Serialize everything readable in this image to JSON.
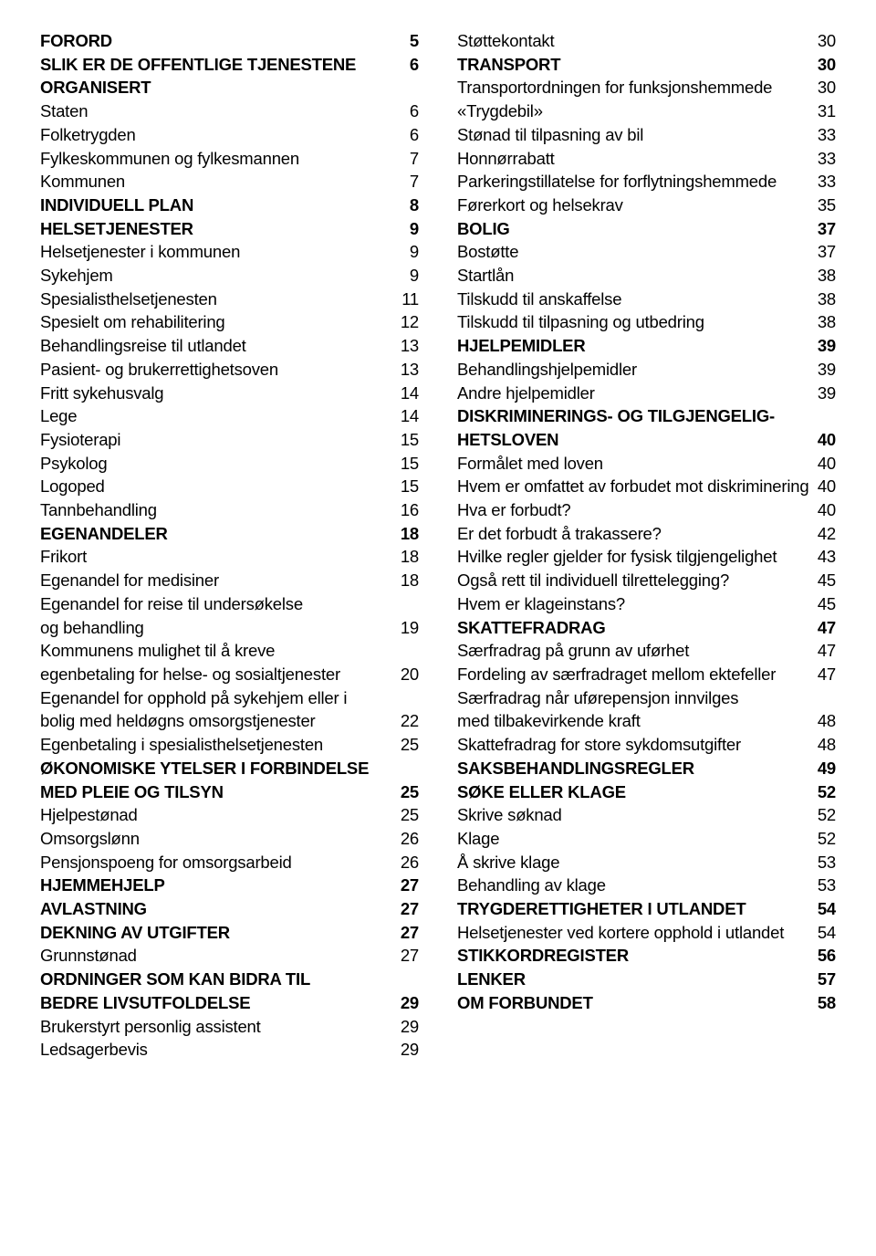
{
  "left": [
    {
      "label": "FORORD",
      "page": "5",
      "bold": true
    },
    {
      "label": "SLIK ER DE OFFENTLIGE TJENESTENE ORGANISERT",
      "page": "6",
      "bold": true
    },
    {
      "label": "Staten",
      "page": "6",
      "bold": false
    },
    {
      "label": "Folketrygden",
      "page": "6",
      "bold": false
    },
    {
      "label": "Fylkeskommunen og fylkesmannen",
      "page": "7",
      "bold": false
    },
    {
      "label": "Kommunen",
      "page": "7",
      "bold": false
    },
    {
      "label": "INDIVIDUELL PLAN",
      "page": "8",
      "bold": true
    },
    {
      "label": "HELSETJENESTER",
      "page": "9",
      "bold": true
    },
    {
      "label": "Helsetjenester i kommunen",
      "page": "9",
      "bold": false
    },
    {
      "label": "Sykehjem",
      "page": "9",
      "bold": false
    },
    {
      "label": "Spesialisthelsetjenesten",
      "page": "11",
      "bold": false
    },
    {
      "label": "Spesielt om rehabilitering",
      "page": "12",
      "bold": false
    },
    {
      "label": "Behandlingsreise til utlandet",
      "page": "13",
      "bold": false
    },
    {
      "label": "Pasient- og brukerrettighetsoven",
      "page": "13",
      "bold": false
    },
    {
      "label": "Fritt sykehusvalg",
      "page": "14",
      "bold": false
    },
    {
      "label": "Lege",
      "page": "14",
      "bold": false
    },
    {
      "label": "Fysioterapi",
      "page": "15",
      "bold": false
    },
    {
      "label": "Psykolog",
      "page": "15",
      "bold": false
    },
    {
      "label": "Logoped",
      "page": "15",
      "bold": false
    },
    {
      "label": "Tannbehandling",
      "page": "16",
      "bold": false
    },
    {
      "label": "EGENANDELER",
      "page": "18",
      "bold": true
    },
    {
      "label": "Frikort",
      "page": "18",
      "bold": false
    },
    {
      "label": "Egenandel for medisiner",
      "page": "18",
      "bold": false
    },
    {
      "label": "Egenandel for reise til undersøkelse",
      "page": "",
      "bold": false,
      "nopage": true
    },
    {
      "label": "og behandling",
      "page": "19",
      "bold": false
    },
    {
      "label": "Kommunens mulighet til å kreve",
      "page": "",
      "bold": false,
      "nopage": true
    },
    {
      "label": "egenbetaling for helse- og sosialtjenester",
      "page": "20",
      "bold": false
    },
    {
      "label": "Egenandel for opphold på sykehjem eller i",
      "page": "",
      "bold": false,
      "nopage": true
    },
    {
      "label": "bolig med heldøgns omsorgstjenester",
      "page": "22",
      "bold": false
    },
    {
      "label": "Egenbetaling i spesialisthelsetjenesten",
      "page": "25",
      "bold": false
    },
    {
      "label": "ØKONOMISKE YTELSER I FORBINDELSE",
      "page": "",
      "bold": true,
      "nopage": true
    },
    {
      "label": "MED PLEIE OG TILSYN",
      "page": "25",
      "bold": true
    },
    {
      "label": "Hjelpestønad",
      "page": "25",
      "bold": false
    },
    {
      "label": "Omsorgslønn",
      "page": "26",
      "bold": false
    },
    {
      "label": "Pensjonspoeng for omsorgsarbeid",
      "page": "26",
      "bold": false
    },
    {
      "label": "HJEMMEHJELP",
      "page": "27",
      "bold": true
    },
    {
      "label": "AVLASTNING",
      "page": "27",
      "bold": true
    },
    {
      "label": "DEKNING AV UTGIFTER",
      "page": "27",
      "bold": true
    },
    {
      "label": "Grunnstønad",
      "page": "27",
      "bold": false
    },
    {
      "label": "ORDNINGER SOM KAN BIDRA TIL",
      "page": "",
      "bold": true,
      "nopage": true
    },
    {
      "label": "BEDRE LIVSUTFOLDELSE",
      "page": "29",
      "bold": true
    },
    {
      "label": "Brukerstyrt personlig assistent",
      "page": "29",
      "bold": false
    },
    {
      "label": "Ledsagerbevis",
      "page": "29",
      "bold": false
    }
  ],
  "right": [
    {
      "label": "Støttekontakt",
      "page": "30",
      "bold": false
    },
    {
      "label": "TRANSPORT",
      "page": "30",
      "bold": true
    },
    {
      "label": "Transportordningen for funksjonshemmede",
      "page": "30",
      "bold": false
    },
    {
      "label": "«Trygdebil»",
      "page": "31",
      "bold": false
    },
    {
      "label": "Stønad til tilpasning av bil",
      "page": "33",
      "bold": false
    },
    {
      "label": "Honnørrabatt",
      "page": "33",
      "bold": false
    },
    {
      "label": "Parkeringstillatelse for forflytningshemmede",
      "page": "33",
      "bold": false
    },
    {
      "label": "Førerkort og helsekrav",
      "page": "35",
      "bold": false
    },
    {
      "label": "BOLIG",
      "page": "37",
      "bold": true
    },
    {
      "label": "Bostøtte",
      "page": "37",
      "bold": false
    },
    {
      "label": "Startlån",
      "page": "38",
      "bold": false
    },
    {
      "label": "Tilskudd til anskaffelse",
      "page": "38",
      "bold": false
    },
    {
      "label": "Tilskudd til tilpasning og utbedring",
      "page": "38",
      "bold": false
    },
    {
      "label": "HJELPEMIDLER",
      "page": "39",
      "bold": true
    },
    {
      "label": "Behandlingshjelpemidler",
      "page": "39",
      "bold": false
    },
    {
      "label": "Andre hjelpemidler",
      "page": "39",
      "bold": false
    },
    {
      "label": "DISKRIMINERINGS- OG TILGJENGELIG-",
      "page": "",
      "bold": true,
      "nopage": true
    },
    {
      "label": "HETSLOVEN",
      "page": "40",
      "bold": true
    },
    {
      "label": "Formålet med loven",
      "page": "40",
      "bold": false
    },
    {
      "label": "Hvem er omfattet av forbudet mot diskriminering",
      "page": "40",
      "bold": false,
      "tight": true
    },
    {
      "label": "Hva er forbudt?",
      "page": "40",
      "bold": false
    },
    {
      "label": "Er det forbudt å trakassere?",
      "page": "42",
      "bold": false
    },
    {
      "label": "Hvilke regler gjelder for fysisk tilgjengelighet",
      "page": "43",
      "bold": false
    },
    {
      "label": "Også rett til individuell tilrettelegging?",
      "page": "45",
      "bold": false
    },
    {
      "label": "Hvem er klageinstans?",
      "page": "45",
      "bold": false
    },
    {
      "label": "SKATTEFRADRAG",
      "page": "47",
      "bold": true
    },
    {
      "label": "Særfradrag på grunn av uførhet",
      "page": "47",
      "bold": false
    },
    {
      "label": "Fordeling av særfradraget mellom ektefeller",
      "page": "47",
      "bold": false
    },
    {
      "label": "Særfradrag når uførepensjon innvilges",
      "page": "",
      "bold": false,
      "nopage": true
    },
    {
      "label": "med tilbakevirkende kraft",
      "page": "48",
      "bold": false
    },
    {
      "label": "Skattefradrag for store sykdomsutgifter",
      "page": "48",
      "bold": false
    },
    {
      "label": "SAKSBEHANDLINGSREGLER",
      "page": "49",
      "bold": true
    },
    {
      "label": "SØKE ELLER KLAGE",
      "page": "52",
      "bold": true
    },
    {
      "label": "Skrive søknad",
      "page": "52",
      "bold": false
    },
    {
      "label": "Klage",
      "page": "52",
      "bold": false
    },
    {
      "label": "Å skrive klage",
      "page": "53",
      "bold": false
    },
    {
      "label": "Behandling av klage",
      "page": "53",
      "bold": false
    },
    {
      "label": "TRYGDERETTIGHETER I UTLANDET",
      "page": "54",
      "bold": true
    },
    {
      "label": "Helsetjenester ved kortere opphold i utlandet",
      "page": "54",
      "bold": false
    },
    {
      "label": "STIKKORDREGISTER",
      "page": "56",
      "bold": true
    },
    {
      "label": "LENKER",
      "page": "57",
      "bold": true
    },
    {
      "label": "OM FORBUNDET",
      "page": "58",
      "bold": true
    }
  ]
}
